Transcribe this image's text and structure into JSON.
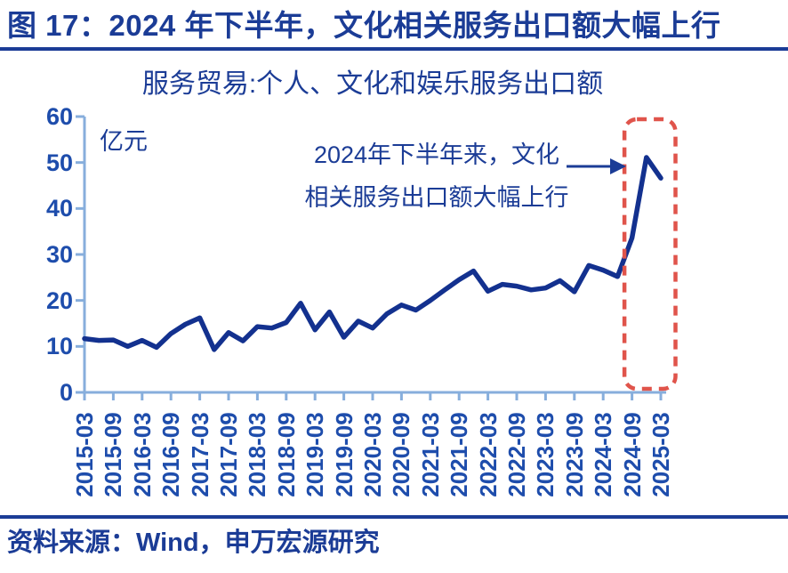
{
  "figure": {
    "title": "图 17：2024 年下半年，文化相关服务出口额大幅上行",
    "source": "资料来源：Wind，申万宏源研究"
  },
  "chart": {
    "subtitle": "服务贸易:个人、文化和娱乐服务出口额",
    "unit_label": "亿元",
    "annotation_line1": "2024年下半年来，文化",
    "annotation_line2": "相关服务出口额大幅上行"
  },
  "colors": {
    "navy_text": "#1B3C96",
    "tick_text": "#1E4DAC",
    "line": "#13318F",
    "axis": "#87AEDC",
    "highlight": "#E0544B"
  },
  "chart_data": {
    "type": "line",
    "title": "服务贸易:个人、文化和娱乐服务出口额",
    "xlabel": "",
    "ylabel": "亿元",
    "ylim": [
      0,
      60
    ],
    "yticks": [
      0,
      10,
      20,
      30,
      40,
      50,
      60
    ],
    "grid": false,
    "legend": "none",
    "x": [
      "2015-03",
      "2015-06",
      "2015-09",
      "2015-12",
      "2016-03",
      "2016-06",
      "2016-09",
      "2016-12",
      "2017-03",
      "2017-06",
      "2017-09",
      "2017-12",
      "2018-03",
      "2018-06",
      "2018-09",
      "2018-12",
      "2019-03",
      "2019-06",
      "2019-09",
      "2019-12",
      "2020-03",
      "2020-06",
      "2020-09",
      "2020-12",
      "2021-03",
      "2021-06",
      "2021-09",
      "2021-12",
      "2022-03",
      "2022-06",
      "2022-09",
      "2022-12",
      "2023-03",
      "2023-06",
      "2023-09",
      "2023-12",
      "2024-03",
      "2024-06",
      "2024-09",
      "2024-12",
      "2025-03"
    ],
    "values": [
      11.7,
      11.3,
      11.4,
      10.0,
      11.3,
      9.8,
      12.8,
      14.8,
      16.2,
      9.3,
      13.0,
      11.2,
      14.3,
      14.0,
      15.2,
      19.4,
      13.6,
      17.5,
      12.0,
      15.5,
      14.0,
      17.1,
      19.0,
      17.9,
      20.0,
      22.3,
      24.5,
      26.4,
      22.0,
      23.5,
      23.1,
      22.3,
      22.7,
      24.3,
      21.9,
      27.6,
      26.6,
      25.2,
      33.6,
      51.1,
      46.6
    ],
    "xtick_labels": [
      "2015-03",
      "2015-09",
      "2016-03",
      "2016-09",
      "2017-03",
      "2017-09",
      "2018-03",
      "2018-09",
      "2019-03",
      "2019-09",
      "2020-03",
      "2020-09",
      "2021-03",
      "2021-09",
      "2022-03",
      "2022-09",
      "2023-03",
      "2023-09",
      "2024-03",
      "2024-09",
      "2025-03"
    ],
    "highlight_region": {
      "from": "2024-09",
      "to": "2025-03"
    },
    "annotation": "2024年下半年来，文化相关服务出口额大幅上行"
  }
}
